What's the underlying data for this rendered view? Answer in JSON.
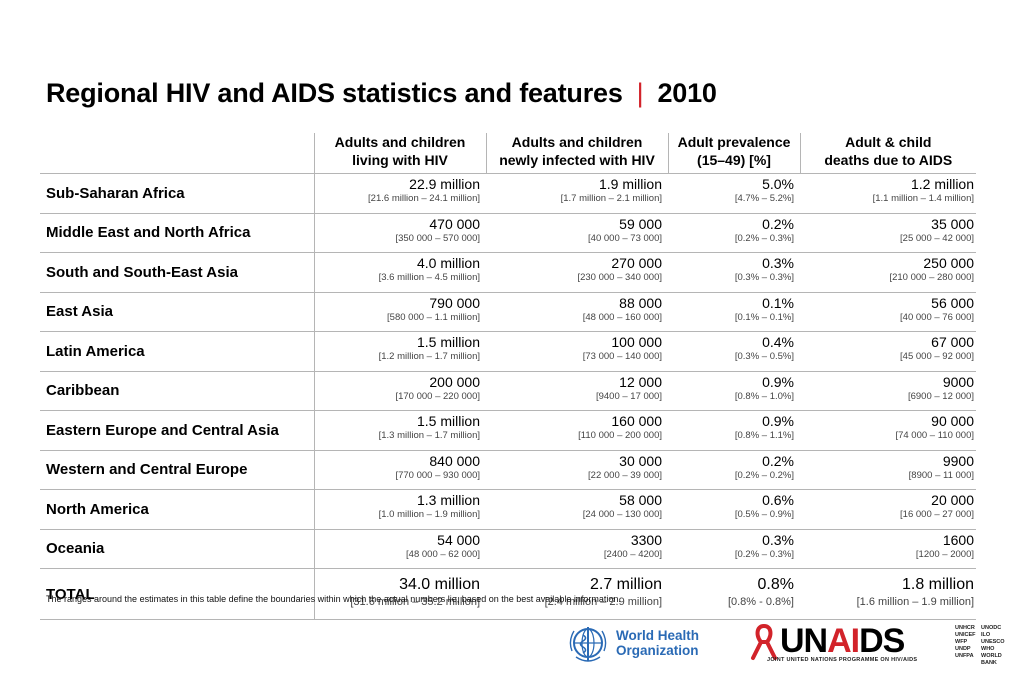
{
  "title": {
    "main": "Regional HIV and AIDS statistics and features",
    "separator": "|",
    "year": "2010"
  },
  "columns": [
    {
      "line1": "Adults and children",
      "line2": "living with HIV"
    },
    {
      "line1": "Adults and children",
      "line2": "newly infected with HIV"
    },
    {
      "line1": "Adult prevalence",
      "line2": "(15–49) [%]"
    },
    {
      "line1": "Adult & child",
      "line2": "deaths due to AIDS"
    }
  ],
  "rows": [
    {
      "region": "Sub-Saharan Africa",
      "cells": [
        {
          "value": "22.9 million",
          "range": "[21.6 million – 24.1 million]"
        },
        {
          "value": "1.9 million",
          "range": "[1.7 million – 2.1 million]"
        },
        {
          "value": "5.0%",
          "range": "[4.7% – 5.2%]"
        },
        {
          "value": "1.2 million",
          "range": "[1.1 million – 1.4 million]"
        }
      ]
    },
    {
      "region": "Middle East and North Africa",
      "cells": [
        {
          "value": "470 000",
          "range": "[350 000 – 570 000]"
        },
        {
          "value": "59 000",
          "range": "[40 000 – 73 000]"
        },
        {
          "value": "0.2%",
          "range": "[0.2% – 0.3%]"
        },
        {
          "value": "35 000",
          "range": "[25 000 – 42 000]"
        }
      ]
    },
    {
      "region": "South and South-East Asia",
      "cells": [
        {
          "value": "4.0 million",
          "range": "[3.6 million – 4.5 million]"
        },
        {
          "value": "270 000",
          "range": "[230 000 – 340 000]"
        },
        {
          "value": "0.3%",
          "range": "[0.3% – 0.3%]"
        },
        {
          "value": "250 000",
          "range": "[210 000 – 280 000]"
        }
      ]
    },
    {
      "region": "East Asia",
      "cells": [
        {
          "value": "790 000",
          "range": "[580 000 – 1.1 million]"
        },
        {
          "value": "88 000",
          "range": "[48 000 – 160 000]"
        },
        {
          "value": "0.1%",
          "range": "[0.1% – 0.1%]"
        },
        {
          "value": "56 000",
          "range": "[40 000 – 76 000]"
        }
      ]
    },
    {
      "region": "Latin America",
      "cells": [
        {
          "value": "1.5 million",
          "range": "[1.2 million – 1.7 million]"
        },
        {
          "value": "100 000",
          "range": "[73 000 – 140 000]"
        },
        {
          "value": "0.4%",
          "range": "[0.3% – 0.5%]"
        },
        {
          "value": "67 000",
          "range": "[45 000 – 92 000]"
        }
      ]
    },
    {
      "region": "Caribbean",
      "cells": [
        {
          "value": "200 000",
          "range": "[170 000 – 220 000]"
        },
        {
          "value": "12 000",
          "range": "[9400 – 17 000]"
        },
        {
          "value": "0.9%",
          "range": "[0.8% – 1.0%]"
        },
        {
          "value": "9000",
          "range": "[6900 – 12 000]"
        }
      ]
    },
    {
      "region": "Eastern Europe and Central Asia",
      "cells": [
        {
          "value": "1.5 million",
          "range": "[1.3 million – 1.7 million]"
        },
        {
          "value": "160 000",
          "range": "[110 000 – 200 000]"
        },
        {
          "value": "0.9%",
          "range": "[0.8% – 1.1%]"
        },
        {
          "value": "90 000",
          "range": "[74 000 – 110 000]"
        }
      ]
    },
    {
      "region": "Western and Central Europe",
      "cells": [
        {
          "value": "840 000",
          "range": "[770 000 – 930 000]"
        },
        {
          "value": "30 000",
          "range": "[22 000 – 39 000]"
        },
        {
          "value": "0.2%",
          "range": "[0.2% – 0.2%]"
        },
        {
          "value": "9900",
          "range": "[8900 – 11 000]"
        }
      ]
    },
    {
      "region": "North America",
      "cells": [
        {
          "value": "1.3 million",
          "range": "[1.0 million – 1.9 million]"
        },
        {
          "value": "58 000",
          "range": "[24 000 – 130 000]"
        },
        {
          "value": "0.6%",
          "range": "[0.5% – 0.9%]"
        },
        {
          "value": "20 000",
          "range": "[16 000 – 27 000]"
        }
      ]
    },
    {
      "region": "Oceania",
      "cells": [
        {
          "value": "54 000",
          "range": "[48 000 – 62 000]"
        },
        {
          "value": "3300",
          "range": "[2400 – 4200]"
        },
        {
          "value": "0.3%",
          "range": "[0.2% – 0.3%]"
        },
        {
          "value": "1600",
          "range": "[1200 – 2000]"
        }
      ]
    }
  ],
  "total": {
    "region": "TOTAL",
    "cells": [
      {
        "value": "34.0 million",
        "range": "[31.6 million – 35.2 million]"
      },
      {
        "value": "2.7 million",
        "range": "[2.4 million – 2.9 million]"
      },
      {
        "value": "0.8%",
        "range": "[0.8% - 0.8%]"
      },
      {
        "value": "1.8 million",
        "range": "[1.6 million – 1.9 million]"
      }
    ]
  },
  "footnote": "The ranges around the estimates in this table define the boundaries within which the actual numbers lie, based on the best available information.",
  "logos": {
    "who": {
      "line1": "World Health",
      "line2": "Organization",
      "icon": "who-emblem-icon",
      "color": "#2a6ab5"
    },
    "unaids": {
      "word_start": "UN",
      "word_accent": "AI",
      "word_end": "DS",
      "subtitle": "JOINT UNITED NATIONS PROGRAMME ON HIV/AIDS",
      "icon": "red-ribbon-icon",
      "accent_color": "#d2232a",
      "cosponsors": [
        "UNHCR",
        "UNODC",
        "UNICEF",
        "ILO",
        "WFP",
        "UNESCO",
        "UNDP",
        "WHO",
        "UNFPA",
        "WORLD BANK"
      ]
    }
  }
}
